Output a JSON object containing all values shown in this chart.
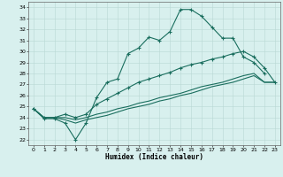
{
  "xlabel": "Humidex (Indice chaleur)",
  "bg_color": "#d8f0ee",
  "grid_color": "#b8d8d4",
  "line_color": "#1a6e5e",
  "xlim": [
    -0.5,
    23.5
  ],
  "ylim": [
    21.5,
    34.5
  ],
  "yticks": [
    22,
    23,
    24,
    25,
    26,
    27,
    28,
    29,
    30,
    31,
    32,
    33,
    34
  ],
  "xticks": [
    0,
    1,
    2,
    3,
    4,
    5,
    6,
    7,
    8,
    9,
    10,
    11,
    12,
    13,
    14,
    15,
    16,
    17,
    18,
    19,
    20,
    21,
    22,
    23
  ],
  "line1_y": [
    24.8,
    23.9,
    23.9,
    23.5,
    22.0,
    23.5,
    25.8,
    27.2,
    27.5,
    29.8,
    30.3,
    31.3,
    31.0,
    31.8,
    33.8,
    33.8,
    33.2,
    32.2,
    31.2,
    31.2,
    29.5,
    29.0,
    28.0,
    null
  ],
  "line2_y": [
    24.8,
    24.0,
    24.0,
    24.3,
    24.0,
    24.3,
    25.2,
    25.7,
    26.2,
    26.7,
    27.2,
    27.5,
    27.8,
    28.1,
    28.5,
    28.8,
    29.0,
    29.3,
    29.5,
    29.8,
    30.0,
    29.5,
    28.5,
    27.2
  ],
  "line3_y": [
    24.8,
    24.0,
    24.0,
    24.0,
    23.8,
    24.0,
    24.3,
    24.5,
    24.8,
    25.0,
    25.3,
    25.5,
    25.8,
    26.0,
    26.2,
    26.5,
    26.8,
    27.0,
    27.2,
    27.5,
    27.8,
    28.0,
    27.2,
    27.2
  ],
  "line4_y": [
    24.8,
    24.0,
    24.0,
    23.8,
    23.5,
    23.8,
    24.0,
    24.2,
    24.5,
    24.8,
    25.0,
    25.2,
    25.5,
    25.7,
    26.0,
    26.2,
    26.5,
    26.8,
    27.0,
    27.2,
    27.5,
    27.8,
    27.2,
    27.2
  ]
}
